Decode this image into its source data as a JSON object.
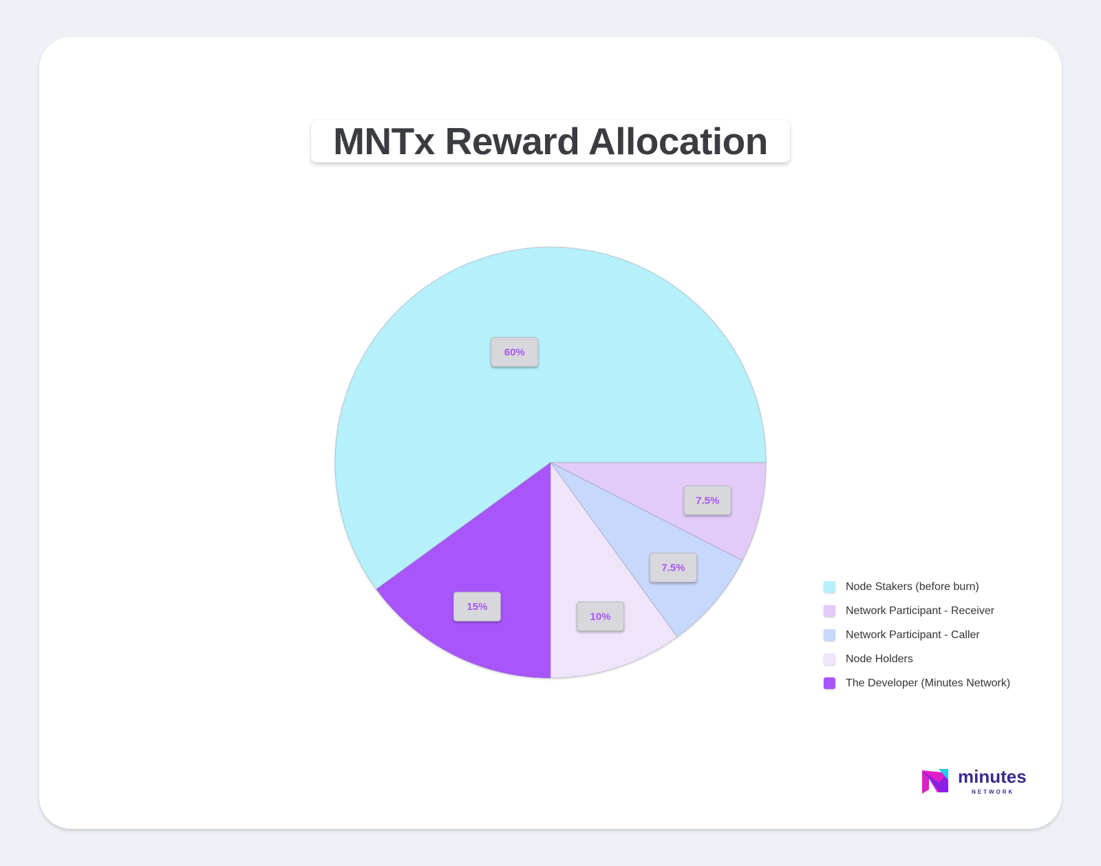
{
  "chart_data": {
    "type": "pie",
    "title": "MNTx Reward Allocation",
    "slices": [
      {
        "label": "Node Stakers (before burn)",
        "value": 60,
        "value_label": "60%",
        "color": "#b6f0fb"
      },
      {
        "label": "Network Participant - Receiver",
        "value": 7.5,
        "value_label": "7.5%",
        "color": "#e2caf9"
      },
      {
        "label": "Network Participant - Caller",
        "value": 7.5,
        "value_label": "7.5%",
        "color": "#c6d8fc"
      },
      {
        "label": "Node Holders",
        "value": 10,
        "value_label": "10%",
        "color": "#f0e4fb"
      },
      {
        "label": "The Developer (Minutes Network)",
        "value": 15,
        "value_label": "15%",
        "color": "#a855fb"
      }
    ],
    "start_angle": "3 o'clock",
    "direction": "counterclockwise for Node Stakers, remaining slices clockwise",
    "legend_position": "right"
  },
  "colors": {
    "background": "#edf1f5",
    "card": "#ffffff",
    "label_text": "#a855f7"
  },
  "brand": {
    "logo_word": "minutes",
    "logo_sub": "NETWORK"
  }
}
